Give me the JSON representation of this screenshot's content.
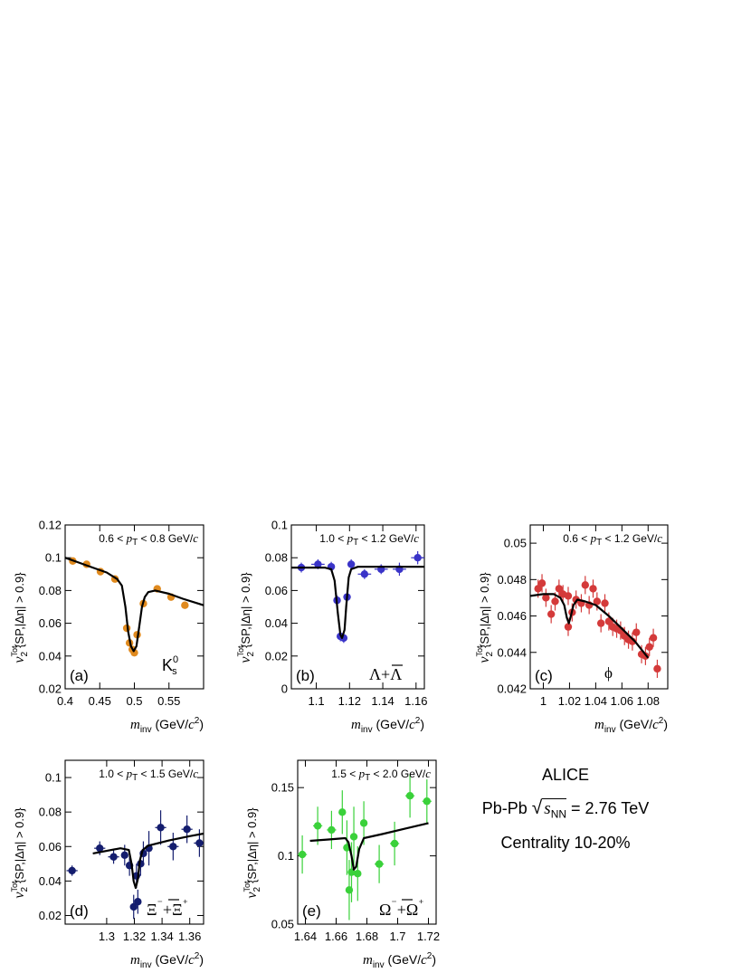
{
  "info": {
    "experiment": "ALICE",
    "system": "Pb-Pb",
    "energy_symbol": "s",
    "energy_subscript": "NN",
    "energy_value": "= 2.76 TeV",
    "centrality": "Centrality 10-20%"
  },
  "chart_data": [
    {
      "id": "a",
      "type": "scatter",
      "panel_label": "(a)",
      "particle_label": "K⁰s",
      "pt_label": "0.6 < pT < 0.8 GeV/c",
      "ylabel": "v2Tot{SP,|Δη| > 0.9}",
      "xlabel": "minv (GeV/c2)",
      "xlim": [
        0.4,
        0.6
      ],
      "ylim": [
        0.02,
        0.12
      ],
      "xticks": [
        0.4,
        0.45,
        0.5,
        0.55
      ],
      "xtick_labels": [
        "0.4",
        "0.45",
        "0.5",
        "0.55"
      ],
      "yticks": [
        0.02,
        0.04,
        0.06,
        0.08,
        0.1,
        0.12
      ],
      "ytick_labels": [
        "0.02",
        "0.04",
        "0.06",
        "0.08",
        "0.1",
        "0.12"
      ],
      "color": "#e08a1e",
      "points": [
        {
          "x": 0.411,
          "y": 0.098,
          "ex": 0.005,
          "ey": 0.0015
        },
        {
          "x": 0.431,
          "y": 0.096,
          "ex": 0.005,
          "ey": 0.0015
        },
        {
          "x": 0.451,
          "y": 0.0915,
          "ex": 0.005,
          "ey": 0.0015
        },
        {
          "x": 0.472,
          "y": 0.087,
          "ex": 0.005,
          "ey": 0.002
        },
        {
          "x": 0.489,
          "y": 0.057,
          "ex": 0.002,
          "ey": 0.002
        },
        {
          "x": 0.493,
          "y": 0.048,
          "ex": 0.001,
          "ey": 0.002
        },
        {
          "x": 0.497,
          "y": 0.044,
          "ex": 0.001,
          "ey": 0.002
        },
        {
          "x": 0.5,
          "y": 0.042,
          "ex": 0.001,
          "ey": 0.002
        },
        {
          "x": 0.504,
          "y": 0.053,
          "ex": 0.001,
          "ey": 0.002
        },
        {
          "x": 0.513,
          "y": 0.072,
          "ex": 0.004,
          "ey": 0.002
        },
        {
          "x": 0.533,
          "y": 0.081,
          "ex": 0.005,
          "ey": 0.002
        },
        {
          "x": 0.553,
          "y": 0.076,
          "ex": 0.005,
          "ey": 0.002
        },
        {
          "x": 0.573,
          "y": 0.071,
          "ex": 0.005,
          "ey": 0.002
        }
      ],
      "fit": [
        [
          0.4,
          0.1
        ],
        [
          0.42,
          0.097
        ],
        [
          0.44,
          0.094
        ],
        [
          0.46,
          0.091
        ],
        [
          0.475,
          0.087
        ],
        [
          0.482,
          0.083
        ],
        [
          0.487,
          0.07
        ],
        [
          0.491,
          0.055
        ],
        [
          0.495,
          0.046
        ],
        [
          0.499,
          0.043
        ],
        [
          0.503,
          0.046
        ],
        [
          0.507,
          0.058
        ],
        [
          0.511,
          0.07
        ],
        [
          0.515,
          0.076
        ],
        [
          0.52,
          0.079
        ],
        [
          0.53,
          0.08
        ],
        [
          0.55,
          0.078
        ],
        [
          0.57,
          0.075
        ],
        [
          0.6,
          0.071
        ]
      ]
    },
    {
      "id": "b",
      "type": "scatter",
      "panel_label": "(b)",
      "particle_label": "Λ+Λ",
      "pt_label": "1.0 < pT < 1.2 GeV/c",
      "ylabel": "v2Tot{SP,|Δη| > 0.9}",
      "xlabel": "minv (GeV/c2)",
      "xlim": [
        1.085,
        1.165
      ],
      "ylim": [
        0.0,
        0.1
      ],
      "xticks": [
        1.1,
        1.12,
        1.14,
        1.16
      ],
      "xtick_labels": [
        "1.1",
        "1.12",
        "1.14",
        "1.16"
      ],
      "yticks": [
        0.0,
        0.02,
        0.04,
        0.06,
        0.08,
        0.1
      ],
      "ytick_labels": [
        "0",
        "0.02",
        "0.04",
        "0.06",
        "0.08",
        "0.1"
      ],
      "color": "#3a34c8",
      "points": [
        {
          "x": 1.091,
          "y": 0.074,
          "ex": 0.004,
          "ey": 0.003
        },
        {
          "x": 1.101,
          "y": 0.076,
          "ex": 0.004,
          "ey": 0.003
        },
        {
          "x": 1.109,
          "y": 0.0745,
          "ex": 0.002,
          "ey": 0.003
        },
        {
          "x": 1.1125,
          "y": 0.054,
          "ex": 0.001,
          "ey": 0.003
        },
        {
          "x": 1.1145,
          "y": 0.032,
          "ex": 0.001,
          "ey": 0.003
        },
        {
          "x": 1.1165,
          "y": 0.031,
          "ex": 0.001,
          "ey": 0.003
        },
        {
          "x": 1.1185,
          "y": 0.056,
          "ex": 0.001,
          "ey": 0.003
        },
        {
          "x": 1.121,
          "y": 0.076,
          "ex": 0.002,
          "ey": 0.003
        },
        {
          "x": 1.129,
          "y": 0.07,
          "ex": 0.004,
          "ey": 0.003
        },
        {
          "x": 1.139,
          "y": 0.073,
          "ex": 0.004,
          "ey": 0.003
        },
        {
          "x": 1.15,
          "y": 0.073,
          "ex": 0.004,
          "ey": 0.004
        },
        {
          "x": 1.161,
          "y": 0.08,
          "ex": 0.004,
          "ey": 0.004
        }
      ],
      "fit": [
        [
          1.085,
          0.074
        ],
        [
          1.105,
          0.074
        ],
        [
          1.109,
          0.073
        ],
        [
          1.111,
          0.066
        ],
        [
          1.113,
          0.046
        ],
        [
          1.1145,
          0.033
        ],
        [
          1.1155,
          0.031
        ],
        [
          1.117,
          0.036
        ],
        [
          1.118,
          0.05
        ],
        [
          1.1195,
          0.068
        ],
        [
          1.121,
          0.073
        ],
        [
          1.125,
          0.0745
        ],
        [
          1.165,
          0.0745
        ]
      ]
    },
    {
      "id": "c",
      "type": "scatter",
      "panel_label": "(c)",
      "particle_label": "ϕ",
      "pt_label": "0.6 < pT < 1.2 GeV/c",
      "ylabel": "v2Tot{SP,|Δη| > 0.9}",
      "xlabel": "minv (GeV/c2)",
      "xlim": [
        0.99,
        1.095
      ],
      "ylim": [
        0.042,
        0.051
      ],
      "xticks": [
        1.0,
        1.02,
        1.04,
        1.06,
        1.08
      ],
      "xtick_labels": [
        "1",
        "1.02",
        "1.04",
        "1.06",
        "1.08"
      ],
      "yticks": [
        0.042,
        0.044,
        0.046,
        0.048,
        0.05
      ],
      "ytick_labels": [
        "0.042",
        "0.044",
        "0.046",
        "0.048",
        "0.05"
      ],
      "color": "#d43a3a",
      "points": [
        {
          "x": 0.996,
          "y": 0.0475,
          "ey": 0.0005
        },
        {
          "x": 0.999,
          "y": 0.0478,
          "ey": 0.0005
        },
        {
          "x": 1.002,
          "y": 0.047,
          "ey": 0.0005
        },
        {
          "x": 1.006,
          "y": 0.0461,
          "ey": 0.0005
        },
        {
          "x": 1.009,
          "y": 0.0468,
          "ey": 0.0005
        },
        {
          "x": 1.012,
          "y": 0.0475,
          "ey": 0.0005
        },
        {
          "x": 1.015,
          "y": 0.0472,
          "ey": 0.0005
        },
        {
          "x": 1.019,
          "y": 0.0471,
          "ey": 0.0005
        },
        {
          "x": 1.019,
          "y": 0.0454,
          "ey": 0.0005
        },
        {
          "x": 1.022,
          "y": 0.0462,
          "ey": 0.0005
        },
        {
          "x": 1.025,
          "y": 0.0469,
          "ey": 0.0005
        },
        {
          "x": 1.029,
          "y": 0.0467,
          "ey": 0.0005
        },
        {
          "x": 1.032,
          "y": 0.0477,
          "ey": 0.0005
        },
        {
          "x": 1.035,
          "y": 0.0466,
          "ey": 0.0005
        },
        {
          "x": 1.038,
          "y": 0.0475,
          "ey": 0.0005
        },
        {
          "x": 1.041,
          "y": 0.0468,
          "ey": 0.0005
        },
        {
          "x": 1.044,
          "y": 0.0456,
          "ey": 0.0005
        },
        {
          "x": 1.047,
          "y": 0.0467,
          "ey": 0.0005
        },
        {
          "x": 1.05,
          "y": 0.0457,
          "ey": 0.0005
        },
        {
          "x": 1.053,
          "y": 0.0454,
          "ey": 0.0005
        },
        {
          "x": 1.056,
          "y": 0.0453,
          "ey": 0.0005
        },
        {
          "x": 1.059,
          "y": 0.0452,
          "ey": 0.0005
        },
        {
          "x": 1.062,
          "y": 0.0449,
          "ey": 0.0005
        },
        {
          "x": 1.065,
          "y": 0.0447,
          "ey": 0.0005
        },
        {
          "x": 1.068,
          "y": 0.0446,
          "ey": 0.0005
        },
        {
          "x": 1.071,
          "y": 0.0451,
          "ey": 0.0005
        },
        {
          "x": 1.075,
          "y": 0.0439,
          "ey": 0.0005
        },
        {
          "x": 1.078,
          "y": 0.0438,
          "ey": 0.0005
        },
        {
          "x": 1.081,
          "y": 0.0443,
          "ey": 0.0005
        },
        {
          "x": 1.084,
          "y": 0.0448,
          "ey": 0.0005
        },
        {
          "x": 1.087,
          "y": 0.0431,
          "ey": 0.0005
        }
      ],
      "fit": [
        [
          0.99,
          0.0471
        ],
        [
          1.0,
          0.0472
        ],
        [
          1.008,
          0.0472
        ],
        [
          1.013,
          0.047
        ],
        [
          1.016,
          0.0466
        ],
        [
          1.018,
          0.0459
        ],
        [
          1.0195,
          0.0456
        ],
        [
          1.021,
          0.046
        ],
        [
          1.023,
          0.0466
        ],
        [
          1.026,
          0.0469
        ],
        [
          1.032,
          0.0468
        ],
        [
          1.04,
          0.0466
        ],
        [
          1.05,
          0.046
        ],
        [
          1.06,
          0.0453
        ],
        [
          1.07,
          0.0446
        ],
        [
          1.08,
          0.0437
        ]
      ]
    },
    {
      "id": "d",
      "type": "scatter",
      "panel_label": "(d)",
      "particle_label": "Ξ⁻+Ξ⁺",
      "pt_label": "1.0 < pT < 1.5 GeV/c",
      "ylabel": "v2Tot{SP,|Δη| > 0.9}",
      "xlabel": "minv (GeV/c2)",
      "xlim": [
        1.27,
        1.37
      ],
      "ylim": [
        0.015,
        0.11
      ],
      "xticks": [
        1.3,
        1.32,
        1.34,
        1.36
      ],
      "xtick_labels": [
        "1.3",
        "1.32",
        "1.34",
        "1.36"
      ],
      "yticks": [
        0.02,
        0.04,
        0.06,
        0.08,
        0.1
      ],
      "ytick_labels": [
        "0.02",
        "0.04",
        "0.06",
        "0.08",
        "0.1"
      ],
      "color": "#141d6e",
      "points": [
        {
          "x": 1.275,
          "y": 0.046,
          "ex": 0.004,
          "ey": 0.003
        },
        {
          "x": 1.295,
          "y": 0.059,
          "ex": 0.004,
          "ey": 0.004
        },
        {
          "x": 1.305,
          "y": 0.054,
          "ex": 0.004,
          "ey": 0.004
        },
        {
          "x": 1.313,
          "y": 0.055,
          "ex": 0.002,
          "ey": 0.006
        },
        {
          "x": 1.3165,
          "y": 0.049,
          "ex": 0.001,
          "ey": 0.006
        },
        {
          "x": 1.3195,
          "y": 0.025,
          "ex": 0.001,
          "ey": 0.007
        },
        {
          "x": 1.3215,
          "y": 0.043,
          "ex": 0.001,
          "ey": 0.007
        },
        {
          "x": 1.3225,
          "y": 0.028,
          "ex": 0.001,
          "ey": 0.007
        },
        {
          "x": 1.3245,
          "y": 0.05,
          "ex": 0.001,
          "ey": 0.007
        },
        {
          "x": 1.3265,
          "y": 0.056,
          "ex": 0.001,
          "ey": 0.007
        },
        {
          "x": 1.3305,
          "y": 0.059,
          "ex": 0.002,
          "ey": 0.01
        },
        {
          "x": 1.339,
          "y": 0.071,
          "ex": 0.004,
          "ey": 0.01
        },
        {
          "x": 1.348,
          "y": 0.06,
          "ex": 0.004,
          "ey": 0.008
        },
        {
          "x": 1.358,
          "y": 0.07,
          "ex": 0.004,
          "ey": 0.008
        },
        {
          "x": 1.367,
          "y": 0.062,
          "ex": 0.004,
          "ey": 0.008
        }
      ],
      "fit": [
        [
          1.29,
          0.056
        ],
        [
          1.31,
          0.059
        ],
        [
          1.316,
          0.058
        ],
        [
          1.318,
          0.05
        ],
        [
          1.3195,
          0.04
        ],
        [
          1.321,
          0.036
        ],
        [
          1.3225,
          0.041
        ],
        [
          1.324,
          0.052
        ],
        [
          1.326,
          0.058
        ],
        [
          1.33,
          0.0605
        ],
        [
          1.345,
          0.0635
        ],
        [
          1.36,
          0.066
        ],
        [
          1.37,
          0.0675
        ]
      ]
    },
    {
      "id": "e",
      "type": "scatter",
      "panel_label": "(e)",
      "particle_label": "Ω⁻+Ω⁺",
      "pt_label": "1.5 < pT < 2.0 GeV/c",
      "ylabel": "v2Tot{SP,|Δη| > 0.9}",
      "xlabel": "minv (GeV/c2)",
      "xlim": [
        1.635,
        1.725
      ],
      "ylim": [
        0.05,
        0.17
      ],
      "xticks": [
        1.64,
        1.66,
        1.68,
        1.7,
        1.72
      ],
      "xtick_labels": [
        "1.64",
        "1.66",
        "1.68",
        "1.7",
        "1.72"
      ],
      "yticks": [
        0.05,
        0.1,
        0.15
      ],
      "ytick_labels": [
        "0.05",
        "0.1",
        "0.15"
      ],
      "color": "#3ad13a",
      "points": [
        {
          "x": 1.638,
          "y": 0.101,
          "ex": 0.003,
          "ey": 0.014
        },
        {
          "x": 1.648,
          "y": 0.122,
          "ex": 0.003,
          "ey": 0.014
        },
        {
          "x": 1.657,
          "y": 0.119,
          "ex": 0.003,
          "ey": 0.014
        },
        {
          "x": 1.664,
          "y": 0.132,
          "ex": 0.002,
          "ey": 0.016
        },
        {
          "x": 1.667,
          "y": 0.106,
          "ex": 0.001,
          "ey": 0.02
        },
        {
          "x": 1.6685,
          "y": 0.075,
          "ex": 0.001,
          "ey": 0.022
        },
        {
          "x": 1.67,
          "y": 0.088,
          "ex": 0.001,
          "ey": 0.022
        },
        {
          "x": 1.6715,
          "y": 0.114,
          "ex": 0.001,
          "ey": 0.022
        },
        {
          "x": 1.674,
          "y": 0.087,
          "ex": 0.001,
          "ey": 0.02
        },
        {
          "x": 1.678,
          "y": 0.124,
          "ex": 0.002,
          "ey": 0.016
        },
        {
          "x": 1.688,
          "y": 0.094,
          "ex": 0.003,
          "ey": 0.014
        },
        {
          "x": 1.698,
          "y": 0.109,
          "ex": 0.003,
          "ey": 0.016
        },
        {
          "x": 1.708,
          "y": 0.144,
          "ex": 0.003,
          "ey": 0.016
        },
        {
          "x": 1.719,
          "y": 0.14,
          "ex": 0.003,
          "ey": 0.016
        }
      ],
      "fit": [
        [
          1.643,
          0.111
        ],
        [
          1.655,
          0.112
        ],
        [
          1.666,
          0.113
        ],
        [
          1.668,
          0.11
        ],
        [
          1.67,
          0.1
        ],
        [
          1.6715,
          0.09
        ],
        [
          1.673,
          0.092
        ],
        [
          1.675,
          0.105
        ],
        [
          1.678,
          0.113
        ],
        [
          1.69,
          0.116
        ],
        [
          1.705,
          0.12
        ],
        [
          1.72,
          0.124
        ]
      ]
    }
  ]
}
